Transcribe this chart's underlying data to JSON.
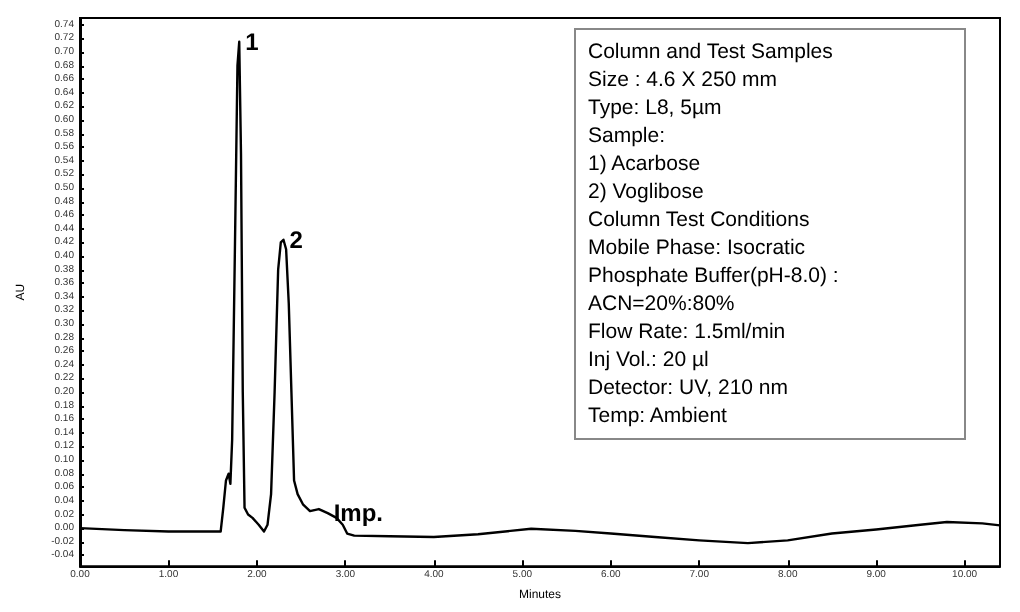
{
  "chart_data": {
    "type": "line",
    "xlabel": "Minutes",
    "ylabel": "AU",
    "xlim": [
      0,
      10.4
    ],
    "ylim": [
      -0.056,
      0.75
    ],
    "xticks": [
      {
        "value": 0,
        "label": "0.00"
      },
      {
        "value": 1,
        "label": "1.00"
      },
      {
        "value": 2,
        "label": "2.00"
      },
      {
        "value": 3,
        "label": "3.00"
      },
      {
        "value": 4,
        "label": "4.00"
      },
      {
        "value": 5,
        "label": "5.00"
      },
      {
        "value": 6,
        "label": "6.00"
      },
      {
        "value": 7,
        "label": "7.00"
      },
      {
        "value": 8,
        "label": "8.00"
      },
      {
        "value": 9,
        "label": "9.00"
      },
      {
        "value": 10,
        "label": "10.00"
      }
    ],
    "yticks": [
      {
        "value": -0.04,
        "label": "-0.04"
      },
      {
        "value": -0.02,
        "label": "-0.02"
      },
      {
        "value": 0,
        "label": "0.00"
      },
      {
        "value": 0.02,
        "label": "0.02"
      },
      {
        "value": 0.04,
        "label": "0.04"
      },
      {
        "value": 0.06,
        "label": "0.06"
      },
      {
        "value": 0.08,
        "label": "0.08"
      },
      {
        "value": 0.1,
        "label": "0.10"
      },
      {
        "value": 0.12,
        "label": "0.12"
      },
      {
        "value": 0.14,
        "label": "0.14"
      },
      {
        "value": 0.16,
        "label": "0.16"
      },
      {
        "value": 0.18,
        "label": "0.18"
      },
      {
        "value": 0.2,
        "label": "0.20"
      },
      {
        "value": 0.22,
        "label": "0.22"
      },
      {
        "value": 0.24,
        "label": "0.24"
      },
      {
        "value": 0.26,
        "label": "0.26"
      },
      {
        "value": 0.28,
        "label": "0.28"
      },
      {
        "value": 0.3,
        "label": "0.30"
      },
      {
        "value": 0.32,
        "label": "0.32"
      },
      {
        "value": 0.34,
        "label": "0.34"
      },
      {
        "value": 0.36,
        "label": "0.36"
      },
      {
        "value": 0.38,
        "label": "0.38"
      },
      {
        "value": 0.4,
        "label": "0.40"
      },
      {
        "value": 0.42,
        "label": "0.42"
      },
      {
        "value": 0.44,
        "label": "0.44"
      },
      {
        "value": 0.46,
        "label": "0.46"
      },
      {
        "value": 0.48,
        "label": "0.48"
      },
      {
        "value": 0.5,
        "label": "0.50"
      },
      {
        "value": 0.52,
        "label": "0.52"
      },
      {
        "value": 0.54,
        "label": "0.54"
      },
      {
        "value": 0.56,
        "label": "0.56"
      },
      {
        "value": 0.58,
        "label": "0.58"
      },
      {
        "value": 0.6,
        "label": "0.60"
      },
      {
        "value": 0.62,
        "label": "0.62"
      },
      {
        "value": 0.64,
        "label": "0.64"
      },
      {
        "value": 0.66,
        "label": "0.66"
      },
      {
        "value": 0.68,
        "label": "0.68"
      },
      {
        "value": 0.7,
        "label": "0.70"
      },
      {
        "value": 0.72,
        "label": "0.72"
      },
      {
        "value": 0.74,
        "label": "0.74"
      }
    ],
    "grid": false,
    "marker": "none",
    "line_style": "solid",
    "series": [
      {
        "color": "#000000",
        "x": [
          0,
          0.5,
          1.0,
          1.59,
          1.62,
          1.65,
          1.68,
          1.7,
          1.72,
          1.75,
          1.78,
          1.8,
          1.82,
          1.84,
          1.86,
          1.9,
          1.95,
          2.02,
          2.08,
          2.12,
          2.16,
          2.2,
          2.24,
          2.27,
          2.3,
          2.33,
          2.36,
          2.39,
          2.42,
          2.46,
          2.52,
          2.6,
          2.7,
          2.8,
          2.9,
          2.97,
          3.02,
          3.1,
          3.5,
          4.0,
          4.5,
          5.1,
          5.6,
          6.0,
          6.5,
          7.0,
          7.55,
          8.0,
          8.5,
          9.0,
          9.5,
          9.8,
          10.2,
          10.4
        ],
        "values": [
          0,
          -0.003,
          -0.005,
          -0.005,
          0.03,
          0.07,
          0.08,
          0.065,
          0.13,
          0.4,
          0.68,
          0.715,
          0.55,
          0.2,
          0.03,
          0.02,
          0.015,
          0.005,
          -0.005,
          0.005,
          0.05,
          0.2,
          0.38,
          0.42,
          0.424,
          0.41,
          0.33,
          0.2,
          0.07,
          0.05,
          0.035,
          0.025,
          0.028,
          0.022,
          0.015,
          0.005,
          -0.008,
          -0.011,
          -0.012,
          -0.013,
          -0.009,
          -0.001,
          -0.004,
          -0.008,
          -0.013,
          -0.018,
          -0.022,
          -0.018,
          -0.008,
          -0.002,
          0.005,
          0.009,
          0.007,
          0.004
        ]
      }
    ],
    "annotations": [
      {
        "text": "1",
        "x": 1.8,
        "y": 0.715
      },
      {
        "text": "2",
        "x": 2.3,
        "y": 0.424
      },
      {
        "text": "Imp.",
        "x": 2.8,
        "y": 0.022
      },
      "Column and Test Samples",
      "Size : 4.6 X 250 mm",
      "Type: L8, 5µm",
      "Sample:",
      "1) Acarbose",
      "2) Voglibose",
      "Column Test Conditions",
      "Mobile Phase: Isocratic",
      "Phosphate Buffer(pH-8.0) :",
      "ACN=20%:80%",
      "Flow Rate: 1.5ml/min",
      "Inj Vol.: 20 µl",
      "Detector: UV, 210 nm",
      "Temp: Ambient"
    ]
  }
}
